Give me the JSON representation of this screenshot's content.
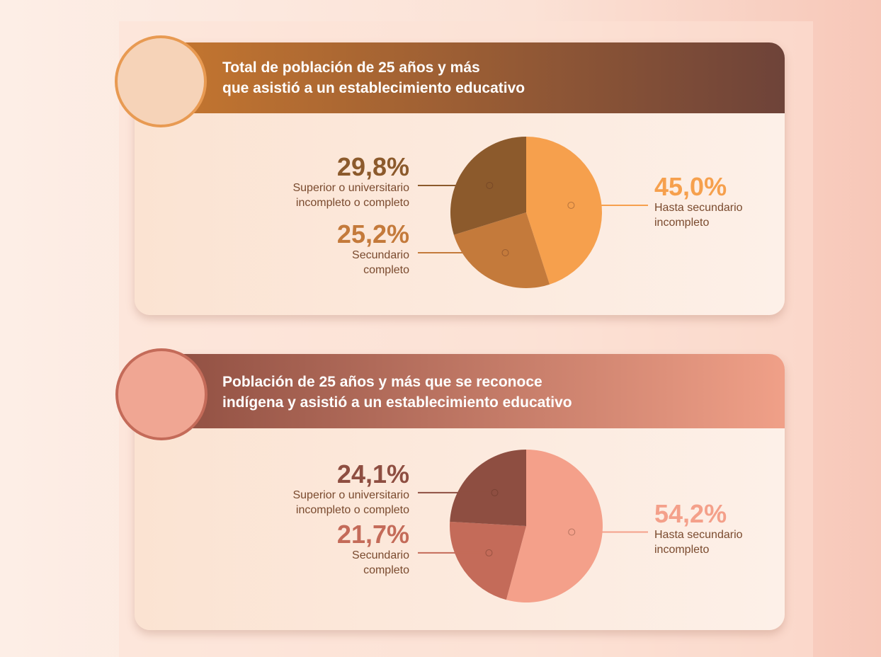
{
  "chart_data": [
    {
      "type": "pie",
      "title": [
        "Total de población de 25 años y más",
        "que asistió a un establecimiento educativo"
      ],
      "categories": [
        "Hasta secundario incompleto",
        "Secundario completo",
        "Superior o universitario incompleto o completo"
      ],
      "values": [
        45.0,
        25.2,
        29.8
      ],
      "value_labels": [
        "45,0%",
        "25,2%",
        "29,8%"
      ],
      "colors": [
        "#f6a04d",
        "#c47a3b",
        "#8c5a2c"
      ]
    },
    {
      "type": "pie",
      "title": [
        "Población de 25 años y más que se reconoce",
        "indígena y asistió a un establecimiento educativo"
      ],
      "categories": [
        "Hasta secundario incompleto",
        "Secundario completo",
        "Superior o universitario incompleto o completo"
      ],
      "values": [
        54.2,
        21.7,
        24.1
      ],
      "value_labels": [
        "54,2%",
        "21,7%",
        "24,1%"
      ],
      "colors": [
        "#f4a08a",
        "#c46b59",
        "#8e4e41"
      ]
    }
  ]
}
